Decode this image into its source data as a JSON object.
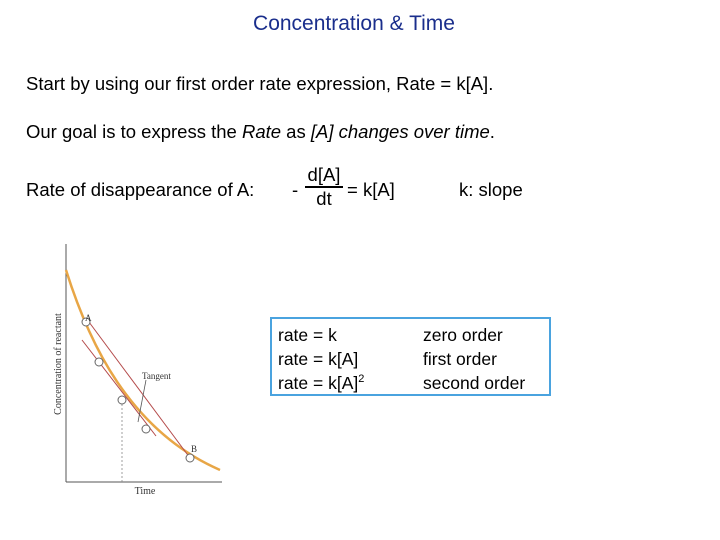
{
  "title": "Concentration & Time",
  "line1": "Start by using our first order rate expression, Rate = k[A].",
  "line2": {
    "p1": "Our goal is to express the ",
    "p2": "Rate",
    "p3": " as ",
    "p4": "[A] changes over time",
    "p5": "."
  },
  "rate_line": {
    "label": "Rate of disappearance of A:",
    "minus": "-",
    "numerator": "d[A]",
    "denominator": "dt",
    "equals": "= k[A]",
    "slope": "k: slope"
  },
  "graph": {
    "ylabel": "Concentration of reactant",
    "xlabel": "Time",
    "point_a": "A",
    "point_b": "B",
    "tangent": "Tangent",
    "curve_color": "#e8a646",
    "tangent_color": "#b44a4a"
  },
  "orders": [
    {
      "expr": "rate = k",
      "name": "zero order"
    },
    {
      "expr": "rate = k[A]",
      "name": "first order"
    },
    {
      "expr": "rate = k[A]",
      "sup": "2",
      "name": "second order"
    }
  ]
}
